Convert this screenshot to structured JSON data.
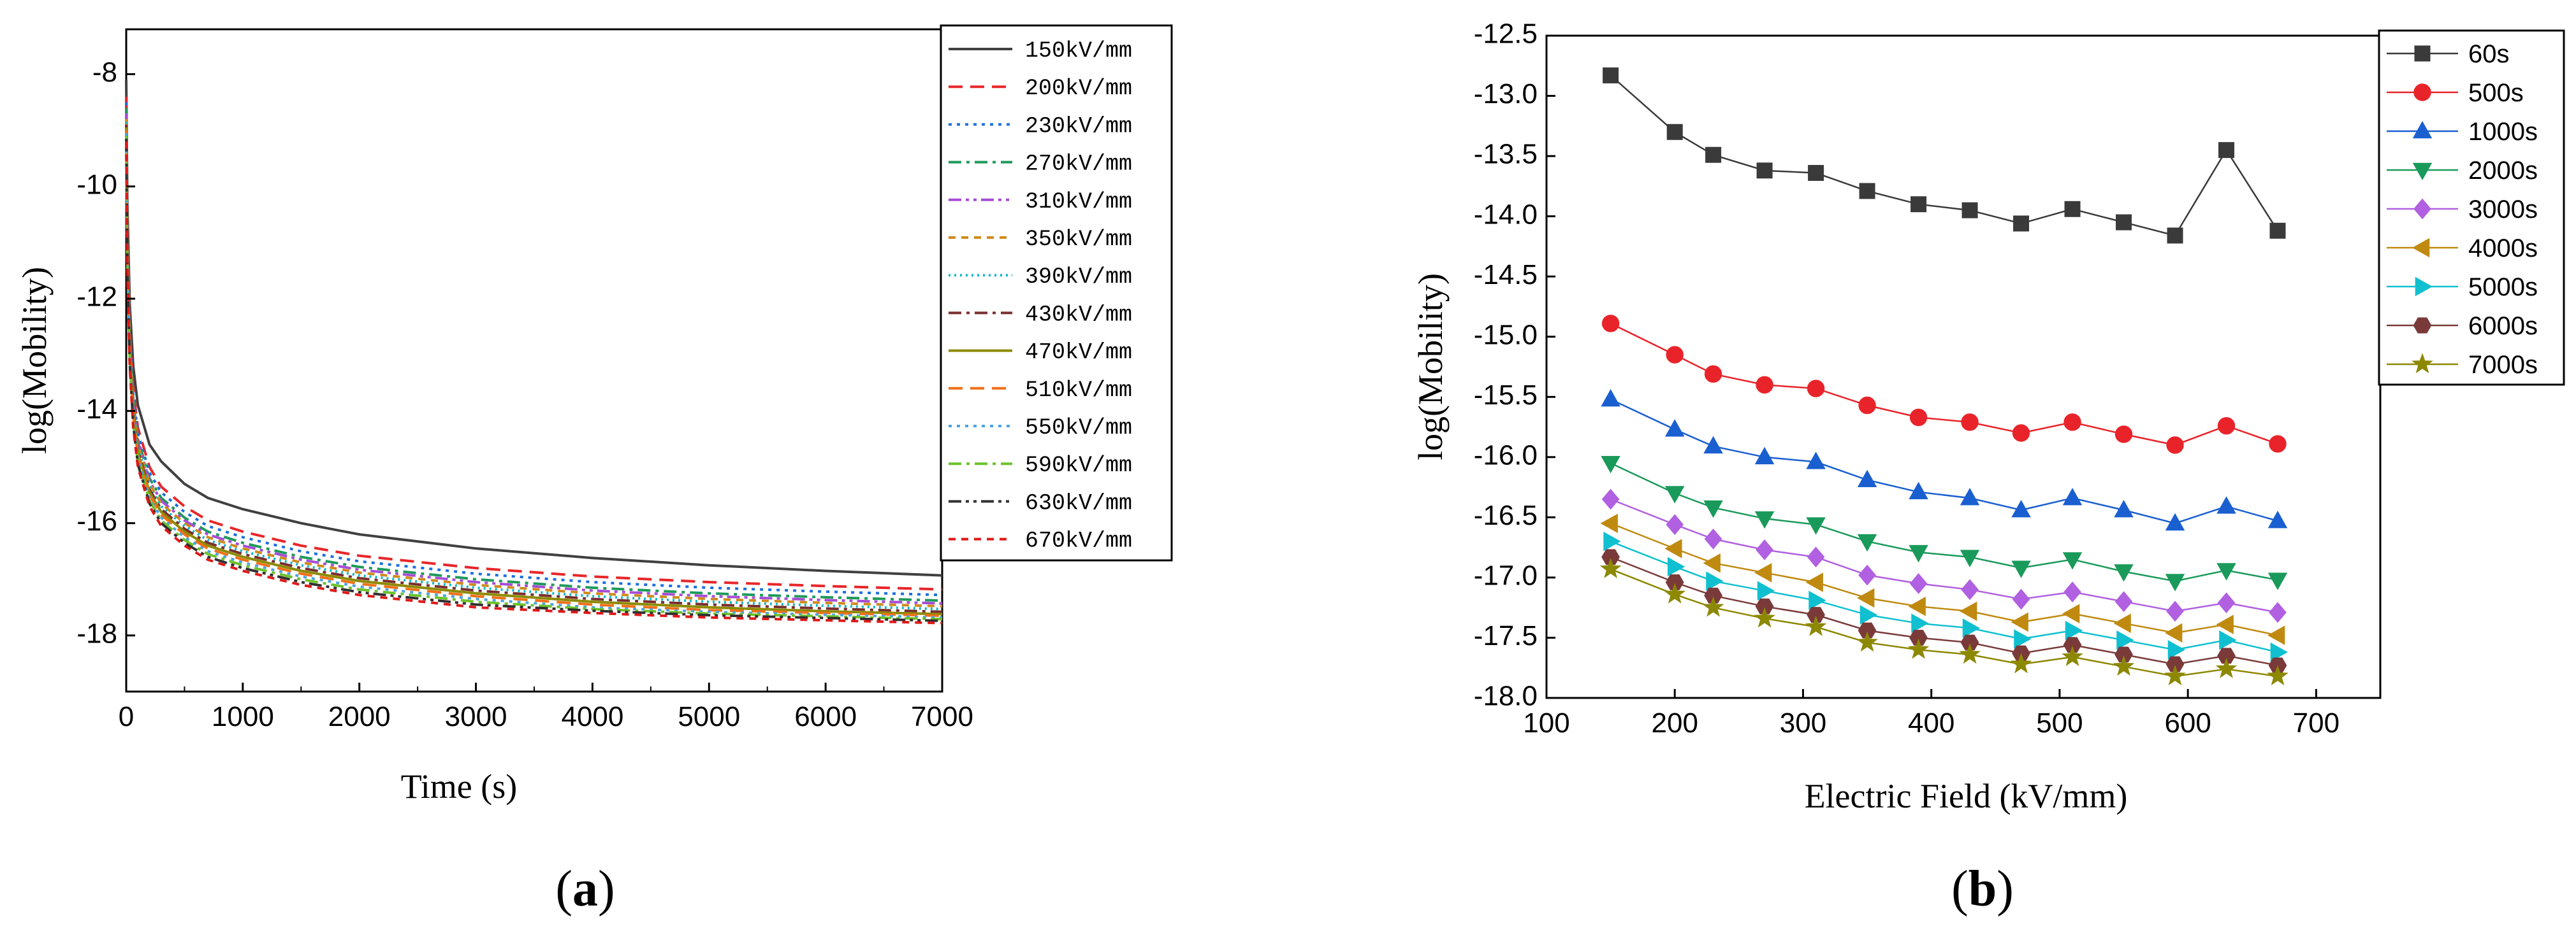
{
  "chart_data": [
    {
      "panel": "a",
      "type": "line",
      "caption": "(a)",
      "title": "",
      "xlabel": "Time (s)",
      "ylabel": "log(Mobility)",
      "xlim": [
        0,
        7000
      ],
      "ylim": [
        -19,
        -7.2
      ],
      "xticks": [
        "0",
        "1000",
        "2000",
        "3000",
        "4000",
        "5000",
        "6000",
        "7000"
      ],
      "yticks": [
        "-8",
        "-10",
        "-12",
        "-14",
        "-16",
        "-18"
      ],
      "ytick_values": [
        -8,
        -10,
        -12,
        -14,
        -16,
        -18
      ],
      "legend_position": "top-right",
      "x": [
        0,
        10,
        30,
        60,
        100,
        200,
        300,
        500,
        700,
        1000,
        1500,
        2000,
        3000,
        4000,
        5000,
        6000,
        7000
      ],
      "series": [
        {
          "name": "150kV/mm",
          "color": "#404040",
          "dash": "solid",
          "values": [
            -8.1,
            -10.3,
            -12.1,
            -13.2,
            -13.9,
            -14.6,
            -14.9,
            -15.3,
            -15.55,
            -15.75,
            -16.0,
            -16.2,
            -16.45,
            -16.62,
            -16.75,
            -16.85,
            -16.93
          ]
        },
        {
          "name": "200kV/mm",
          "color": "#e8262a",
          "dash": "longdash",
          "values": [
            -8.4,
            -10.7,
            -12.5,
            -13.6,
            -14.3,
            -15.0,
            -15.35,
            -15.7,
            -15.95,
            -16.15,
            -16.4,
            -16.58,
            -16.8,
            -16.95,
            -17.05,
            -17.12,
            -17.18
          ]
        },
        {
          "name": "230kV/mm",
          "color": "#1a6fe0",
          "dash": "dot",
          "values": [
            -8.5,
            -10.8,
            -12.6,
            -13.7,
            -14.4,
            -15.1,
            -15.45,
            -15.8,
            -16.05,
            -16.25,
            -16.5,
            -16.68,
            -16.9,
            -17.05,
            -17.15,
            -17.22,
            -17.28
          ]
        },
        {
          "name": "270kV/mm",
          "color": "#1e9a5a",
          "dash": "dashdot",
          "values": [
            -8.6,
            -10.9,
            -12.7,
            -13.8,
            -14.5,
            -15.2,
            -15.55,
            -15.9,
            -16.15,
            -16.35,
            -16.6,
            -16.78,
            -17.0,
            -17.15,
            -17.25,
            -17.32,
            -17.38
          ]
        },
        {
          "name": "310kV/mm",
          "color": "#a64dd6",
          "dash": "dashdotdot",
          "values": [
            -8.7,
            -11.0,
            -12.75,
            -13.85,
            -14.55,
            -15.25,
            -15.6,
            -15.95,
            -16.2,
            -16.4,
            -16.65,
            -16.83,
            -17.05,
            -17.2,
            -17.3,
            -17.37,
            -17.43
          ]
        },
        {
          "name": "350kV/mm",
          "color": "#d08a1a",
          "dash": "shortdash",
          "values": [
            -8.8,
            -11.1,
            -12.8,
            -13.9,
            -14.6,
            -15.3,
            -15.65,
            -16.0,
            -16.25,
            -16.45,
            -16.7,
            -16.88,
            -17.1,
            -17.25,
            -17.35,
            -17.42,
            -17.48
          ]
        },
        {
          "name": "390kV/mm",
          "color": "#12b8c8",
          "dash": "shortdot",
          "values": [
            -8.85,
            -11.15,
            -12.85,
            -13.95,
            -14.65,
            -15.35,
            -15.7,
            -16.05,
            -16.3,
            -16.5,
            -16.75,
            -16.93,
            -17.15,
            -17.3,
            -17.4,
            -17.47,
            -17.53
          ]
        },
        {
          "name": "430kV/mm",
          "color": "#7a2e2e",
          "dash": "dashdot",
          "values": [
            -8.9,
            -11.2,
            -12.9,
            -14.0,
            -14.7,
            -15.4,
            -15.75,
            -16.1,
            -16.35,
            -16.55,
            -16.8,
            -16.98,
            -17.2,
            -17.35,
            -17.45,
            -17.52,
            -17.58
          ]
        },
        {
          "name": "470kV/mm",
          "color": "#8c8a00",
          "dash": "solid",
          "values": [
            -8.95,
            -11.25,
            -12.95,
            -14.05,
            -14.75,
            -15.45,
            -15.8,
            -16.15,
            -16.4,
            -16.6,
            -16.85,
            -17.03,
            -17.25,
            -17.4,
            -17.5,
            -17.57,
            -17.62
          ]
        },
        {
          "name": "510kV/mm",
          "color": "#f07018",
          "dash": "longdash",
          "values": [
            -9.0,
            -11.3,
            -13.0,
            -14.1,
            -14.8,
            -15.5,
            -15.85,
            -16.2,
            -16.45,
            -16.65,
            -16.9,
            -17.08,
            -17.3,
            -17.45,
            -17.55,
            -17.6,
            -17.65
          ]
        },
        {
          "name": "550kV/mm",
          "color": "#4ba3e0",
          "dash": "dot",
          "values": [
            -9.05,
            -11.35,
            -13.05,
            -14.15,
            -14.85,
            -15.55,
            -15.9,
            -16.25,
            -16.5,
            -16.7,
            -16.95,
            -17.13,
            -17.35,
            -17.5,
            -17.58,
            -17.63,
            -17.68
          ]
        },
        {
          "name": "590kV/mm",
          "color": "#6cc22a",
          "dash": "dashdot",
          "values": [
            -9.1,
            -11.4,
            -13.1,
            -14.2,
            -14.9,
            -15.6,
            -15.95,
            -16.3,
            -16.55,
            -16.75,
            -17.0,
            -17.18,
            -17.4,
            -17.53,
            -17.61,
            -17.66,
            -17.71
          ]
        },
        {
          "name": "630kV/mm",
          "color": "#303030",
          "dash": "dashdotdot",
          "values": [
            -9.15,
            -11.45,
            -13.15,
            -14.25,
            -14.95,
            -15.65,
            -16.0,
            -16.35,
            -16.6,
            -16.8,
            -17.05,
            -17.23,
            -17.45,
            -17.56,
            -17.64,
            -17.69,
            -17.74
          ]
        },
        {
          "name": "670kV/mm",
          "color": "#e01818",
          "dash": "shortdash",
          "values": [
            -9.2,
            -11.5,
            -13.2,
            -14.3,
            -15.0,
            -15.7,
            -16.05,
            -16.4,
            -16.65,
            -16.85,
            -17.1,
            -17.28,
            -17.5,
            -17.6,
            -17.68,
            -17.73,
            -17.78
          ]
        }
      ]
    },
    {
      "panel": "b",
      "type": "line",
      "caption": "(b)",
      "title": "",
      "xlabel": "Electric Field (kV/mm)",
      "ylabel": "log(Mobility)",
      "xlim": [
        100,
        750
      ],
      "ylim": [
        -18.0,
        -12.5
      ],
      "xticks": [
        "100",
        "200",
        "300",
        "400",
        "500",
        "600",
        "700"
      ],
      "yticks": [
        "-12.5",
        "-13.0",
        "-13.5",
        "-14.0",
        "-14.5",
        "-15.0",
        "-15.5",
        "-16.0",
        "-16.5",
        "-17.0",
        "-17.5",
        "-18.0"
      ],
      "ytick_values": [
        -12.5,
        -13.0,
        -13.5,
        -14.0,
        -14.5,
        -15.0,
        -15.5,
        -16.0,
        -16.5,
        -17.0,
        -17.5,
        -18.0
      ],
      "legend_position": "top-right",
      "x": [
        150,
        200,
        230,
        270,
        310,
        350,
        390,
        430,
        470,
        510,
        550,
        590,
        630,
        670
      ],
      "series": [
        {
          "name": "60s",
          "color": "#3a3a3a",
          "marker": "square",
          "values": [
            -12.83,
            -13.3,
            -13.49,
            -13.62,
            -13.64,
            -13.79,
            -13.9,
            -13.95,
            -14.06,
            -13.94,
            -14.05,
            -14.16,
            -13.45,
            -14.12
          ]
        },
        {
          "name": "500s",
          "color": "#e8242a",
          "marker": "circle",
          "values": [
            -14.89,
            -15.15,
            -15.31,
            -15.4,
            -15.43,
            -15.57,
            -15.67,
            -15.71,
            -15.8,
            -15.71,
            -15.81,
            -15.9,
            -15.74,
            -15.89
          ]
        },
        {
          "name": "1000s",
          "color": "#1a5fd0",
          "marker": "triangle-up",
          "values": [
            -15.52,
            -15.77,
            -15.91,
            -16.0,
            -16.04,
            -16.19,
            -16.29,
            -16.34,
            -16.44,
            -16.34,
            -16.44,
            -16.55,
            -16.41,
            -16.53
          ]
        },
        {
          "name": "2000s",
          "color": "#1a9a5a",
          "marker": "triangle-down",
          "values": [
            -16.05,
            -16.3,
            -16.42,
            -16.51,
            -16.56,
            -16.7,
            -16.79,
            -16.83,
            -16.92,
            -16.85,
            -16.95,
            -17.03,
            -16.94,
            -17.02
          ]
        },
        {
          "name": "3000s",
          "color": "#b060e0",
          "marker": "diamond",
          "values": [
            -16.35,
            -16.56,
            -16.68,
            -16.77,
            -16.83,
            -16.98,
            -17.05,
            -17.1,
            -17.18,
            -17.12,
            -17.2,
            -17.28,
            -17.21,
            -17.29
          ]
        },
        {
          "name": "4000s",
          "color": "#c08a10",
          "marker": "triangle-left",
          "values": [
            -16.55,
            -16.76,
            -16.88,
            -16.96,
            -17.04,
            -17.17,
            -17.24,
            -17.28,
            -17.37,
            -17.3,
            -17.38,
            -17.46,
            -17.39,
            -17.48
          ]
        },
        {
          "name": "5000s",
          "color": "#10c0d0",
          "marker": "triangle-right",
          "values": [
            -16.7,
            -16.91,
            -17.03,
            -17.11,
            -17.19,
            -17.31,
            -17.38,
            -17.42,
            -17.51,
            -17.44,
            -17.52,
            -17.6,
            -17.52,
            -17.62
          ]
        },
        {
          "name": "6000s",
          "color": "#7a3a3a",
          "marker": "hexagon",
          "values": [
            -16.83,
            -17.04,
            -17.15,
            -17.24,
            -17.31,
            -17.44,
            -17.5,
            -17.54,
            -17.63,
            -17.56,
            -17.64,
            -17.72,
            -17.65,
            -17.73
          ]
        },
        {
          "name": "7000s",
          "color": "#8c8800",
          "marker": "star",
          "values": [
            -16.93,
            -17.14,
            -17.25,
            -17.34,
            -17.41,
            -17.54,
            -17.6,
            -17.64,
            -17.72,
            -17.66,
            -17.74,
            -17.82,
            -17.76,
            -17.82
          ]
        }
      ]
    }
  ]
}
